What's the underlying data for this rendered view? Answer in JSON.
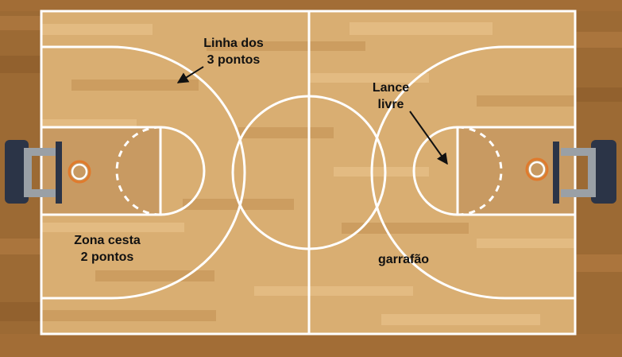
{
  "diagram": {
    "labels": {
      "three_point_line": [
        "Linha dos",
        "3 pontos"
      ],
      "free_throw": [
        "Lance",
        "livre"
      ],
      "two_point_zone": [
        "Zona cesta",
        "2 pontos"
      ],
      "key": "garrafão"
    },
    "colors": {
      "floor": "#d9ae72",
      "floor_dark": "#c99a5c",
      "paint": "#b98a55",
      "lines": "#ffffff",
      "outer_floor": "#9c6a34",
      "backboard": "#2b3447",
      "hoop": "#e07a2c",
      "support": "#9aa0a6",
      "arrow": "#111111"
    }
  }
}
